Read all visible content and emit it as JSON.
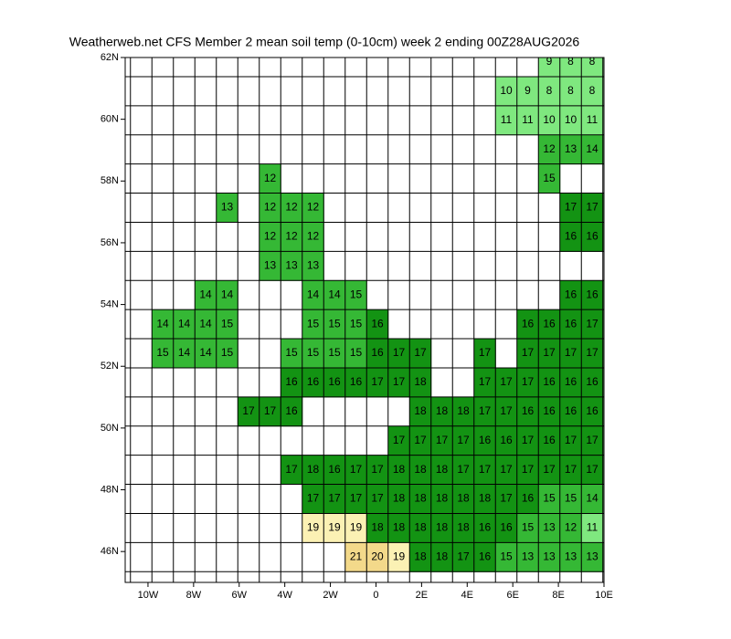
{
  "chart_data": {
    "type": "grid-map",
    "title": "Weatherweb.net CFS Member 2 mean soil temp (0-10cm) week 2 ending 00Z28AUG2026",
    "xlim": [
      -11,
      10
    ],
    "xticks": [
      {
        "value": -10,
        "label": "10W"
      },
      {
        "value": -8,
        "label": "8W"
      },
      {
        "value": -6,
        "label": "6W"
      },
      {
        "value": -4,
        "label": "4W"
      },
      {
        "value": -2,
        "label": "2W"
      },
      0,
      {
        "value": 2,
        "label": "2E"
      },
      {
        "value": 4,
        "label": "4E"
      },
      {
        "value": 6,
        "label": "6E"
      },
      {
        "value": 8,
        "label": "8E"
      },
      {
        "value": 10,
        "label": "10E"
      }
    ],
    "ylim": [
      45,
      62
    ],
    "yticks": [
      {
        "value": 46,
        "label": "46N"
      },
      {
        "value": 48,
        "label": "48N"
      },
      {
        "value": 50,
        "label": "50N"
      },
      {
        "value": 52,
        "label": "52N"
      },
      {
        "value": 54,
        "label": "54N"
      },
      {
        "value": 56,
        "label": "56N"
      },
      {
        "value": 58,
        "label": "58N"
      },
      {
        "value": 60,
        "label": "60N"
      },
      {
        "value": 62,
        "label": "62N"
      }
    ],
    "rows": [
      [
        null,
        null,
        null,
        null,
        null,
        null,
        null,
        null,
        null,
        null,
        null,
        null,
        null,
        null,
        null,
        null,
        null,
        null,
        9,
        8,
        8
      ],
      [
        null,
        null,
        null,
        null,
        null,
        null,
        null,
        null,
        null,
        null,
        null,
        null,
        null,
        null,
        null,
        null,
        10,
        9,
        8,
        8,
        8
      ],
      [
        null,
        null,
        null,
        null,
        null,
        null,
        null,
        null,
        null,
        null,
        null,
        null,
        null,
        null,
        null,
        null,
        11,
        11,
        10,
        10,
        11
      ],
      [
        null,
        null,
        null,
        null,
        null,
        null,
        null,
        null,
        null,
        null,
        null,
        null,
        null,
        null,
        null,
        null,
        null,
        null,
        12,
        13,
        14
      ],
      [
        null,
        null,
        null,
        null,
        null,
        12,
        null,
        null,
        null,
        null,
        null,
        null,
        null,
        null,
        null,
        null,
        null,
        null,
        15,
        null,
        null
      ],
      [
        null,
        null,
        null,
        13,
        null,
        12,
        12,
        12,
        null,
        null,
        null,
        null,
        null,
        null,
        null,
        null,
        null,
        null,
        null,
        17,
        17
      ],
      [
        null,
        null,
        null,
        null,
        null,
        12,
        12,
        12,
        null,
        null,
        null,
        null,
        null,
        null,
        null,
        null,
        null,
        null,
        null,
        16,
        16
      ],
      [
        null,
        null,
        null,
        null,
        null,
        13,
        13,
        13,
        null,
        null,
        null,
        null,
        null,
        null,
        null,
        null,
        null,
        null,
        null,
        null,
        null
      ],
      [
        null,
        null,
        14,
        14,
        null,
        null,
        null,
        14,
        14,
        15,
        null,
        null,
        null,
        null,
        null,
        null,
        null,
        null,
        null,
        16,
        16
      ],
      [
        14,
        14,
        14,
        15,
        null,
        null,
        null,
        15,
        15,
        15,
        16,
        null,
        null,
        null,
        null,
        null,
        null,
        16,
        16,
        16,
        17
      ],
      [
        15,
        14,
        14,
        15,
        null,
        null,
        15,
        15,
        15,
        15,
        16,
        17,
        17,
        null,
        null,
        17,
        null,
        17,
        17,
        17,
        17
      ],
      [
        null,
        null,
        null,
        null,
        null,
        null,
        16,
        16,
        16,
        16,
        17,
        17,
        18,
        null,
        null,
        17,
        17,
        17,
        16,
        16,
        16
      ],
      [
        null,
        null,
        null,
        null,
        17,
        17,
        16,
        null,
        null,
        null,
        null,
        null,
        18,
        18,
        18,
        17,
        17,
        16,
        16,
        16,
        16
      ],
      [
        null,
        null,
        null,
        null,
        null,
        null,
        null,
        null,
        null,
        null,
        null,
        17,
        17,
        17,
        17,
        16,
        16,
        17,
        16,
        17,
        17
      ],
      [
        null,
        null,
        null,
        null,
        null,
        null,
        17,
        18,
        16,
        17,
        17,
        18,
        18,
        18,
        17,
        17,
        17,
        17,
        17,
        17,
        17
      ],
      [
        null,
        null,
        null,
        null,
        null,
        null,
        null,
        17,
        17,
        17,
        17,
        18,
        18,
        18,
        18,
        18,
        17,
        16,
        15,
        15,
        14
      ],
      [
        null,
        null,
        null,
        null,
        null,
        null,
        null,
        19,
        19,
        19,
        18,
        18,
        18,
        18,
        18,
        16,
        16,
        15,
        13,
        12,
        11
      ],
      [
        null,
        null,
        null,
        null,
        null,
        null,
        null,
        null,
        null,
        21,
        20,
        19,
        18,
        18,
        17,
        16,
        15,
        13,
        13,
        13,
        13
      ]
    ]
  }
}
